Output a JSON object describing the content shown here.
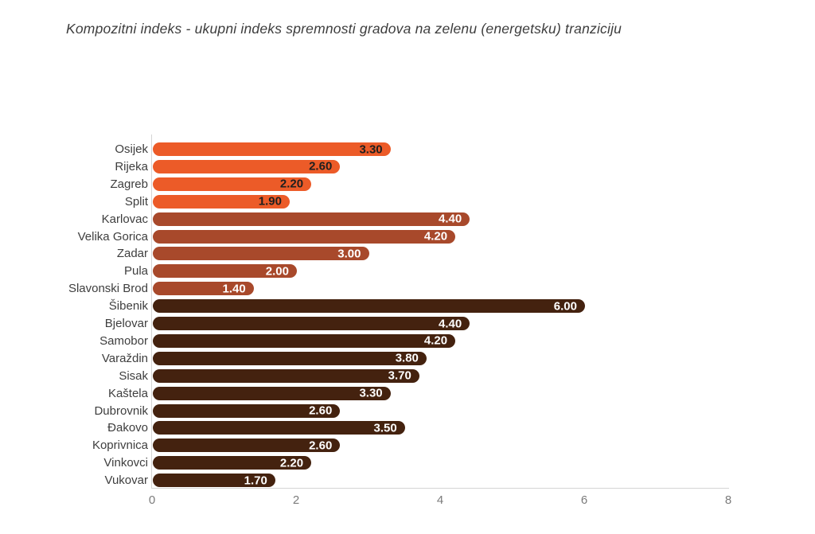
{
  "title": "Kompozitni indeks - ukupni indeks spremnosti gradova na zelenu (energetsku) tranziciju",
  "chart_data": {
    "type": "bar",
    "orientation": "horizontal",
    "title": "Kompozitni indeks - ukupni indeks spremnosti gradova na zelenu (energetsku) tranziciju",
    "xlabel": "",
    "ylabel": "",
    "xlim": [
      0,
      8
    ],
    "xticks": [
      0,
      2,
      4,
      6,
      8
    ],
    "grid": false,
    "legend": "none",
    "bars": [
      {
        "city": "Osijek",
        "value": 3.3,
        "label": "3.30",
        "group": "orange"
      },
      {
        "city": "Rijeka",
        "value": 2.6,
        "label": "2.60",
        "group": "orange"
      },
      {
        "city": "Zagreb",
        "value": 2.2,
        "label": "2.20",
        "group": "orange"
      },
      {
        "city": "Split",
        "value": 1.9,
        "label": "1.90",
        "group": "orange"
      },
      {
        "city": "Karlovac",
        "value": 4.4,
        "label": "4.40",
        "group": "rust"
      },
      {
        "city": "Velika Gorica",
        "value": 4.2,
        "label": "4.20",
        "group": "rust"
      },
      {
        "city": "Zadar",
        "value": 3.0,
        "label": "3.00",
        "group": "rust"
      },
      {
        "city": "Pula",
        "value": 2.0,
        "label": "2.00",
        "group": "rust"
      },
      {
        "city": "Slavonski Brod",
        "value": 1.4,
        "label": "1.40",
        "group": "rust"
      },
      {
        "city": "Šibenik",
        "value": 6.0,
        "label": "6.00",
        "group": "brown"
      },
      {
        "city": "Bjelovar",
        "value": 4.4,
        "label": "4.40",
        "group": "brown"
      },
      {
        "city": "Samobor",
        "value": 4.2,
        "label": "4.20",
        "group": "brown"
      },
      {
        "city": "Varaždin",
        "value": 3.8,
        "label": "3.80",
        "group": "brown"
      },
      {
        "city": "Sisak",
        "value": 3.7,
        "label": "3.70",
        "group": "brown"
      },
      {
        "city": "Kaštela",
        "value": 3.3,
        "label": "3.30",
        "group": "brown"
      },
      {
        "city": "Dubrovnik",
        "value": 2.6,
        "label": "2.60",
        "group": "brown"
      },
      {
        "city": "Đakovo",
        "value": 3.5,
        "label": "3.50",
        "group": "brown"
      },
      {
        "city": "Koprivnica",
        "value": 2.6,
        "label": "2.60",
        "group": "brown"
      },
      {
        "city": "Vinkovci",
        "value": 2.2,
        "label": "2.20",
        "group": "brown"
      },
      {
        "city": "Vukovar",
        "value": 1.7,
        "label": "1.70",
        "group": "brown"
      }
    ],
    "group_colors": {
      "orange": "#ec5b28",
      "rust": "#a8492b",
      "brown": "#44220f"
    },
    "value_label_colors": {
      "orange": "#1f1f1f",
      "rust": "#ffffff",
      "brown": "#ffffff"
    },
    "axis_color": "#d4d4d4",
    "tick_label_color": "#7b7b7b",
    "category_label_color": "#3e3e3e"
  }
}
